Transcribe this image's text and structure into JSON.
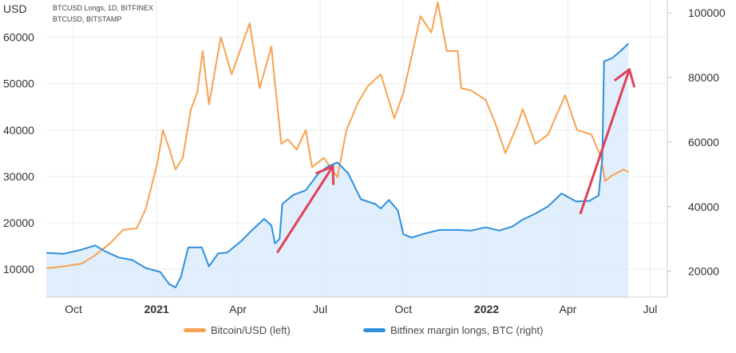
{
  "chart_data": {
    "type": "line",
    "header": {
      "unit": "USD",
      "series_lines": [
        "BTCUSD Longs, 1D, BITFINEX",
        "BTCUSD, BITSTAMP"
      ]
    },
    "left_axis": {
      "ticks": [
        "10000",
        "20000",
        "30000",
        "40000",
        "50000",
        "60000"
      ],
      "tick_values": [
        10000,
        20000,
        30000,
        40000,
        50000,
        60000
      ],
      "ylim": [
        4000,
        68000
      ]
    },
    "right_axis": {
      "ticks": [
        "20000",
        "40000",
        "60000",
        "80000",
        "100000"
      ],
      "tick_values": [
        20000,
        40000,
        60000,
        80000,
        100000
      ],
      "ylim": [
        12000,
        104000
      ]
    },
    "x_axis": {
      "ticks": [
        {
          "label": "Oct",
          "date": "2020-10-01",
          "bold": false
        },
        {
          "label": "2021",
          "date": "2021-01-01",
          "bold": true
        },
        {
          "label": "Apr",
          "date": "2021-04-01",
          "bold": false
        },
        {
          "label": "Jul",
          "date": "2021-07-01",
          "bold": false
        },
        {
          "label": "Oct",
          "date": "2021-10-01",
          "bold": false
        },
        {
          "label": "2022",
          "date": "2022-01-01",
          "bold": true
        },
        {
          "label": "Apr",
          "date": "2022-04-01",
          "bold": false
        },
        {
          "label": "Jul",
          "date": "2022-07-01",
          "bold": false
        }
      ],
      "xlim": [
        "2020-09-01",
        "2022-07-20"
      ]
    },
    "series": [
      {
        "name": "Bitcoin/USD (left)",
        "color": "#f7a250",
        "axis": "left",
        "points": [
          [
            "2020-09-01",
            10200
          ],
          [
            "2020-09-20",
            10600
          ],
          [
            "2020-10-10",
            11200
          ],
          [
            "2020-10-25",
            13000
          ],
          [
            "2020-11-10",
            15500
          ],
          [
            "2020-11-25",
            18500
          ],
          [
            "2020-12-10",
            18800
          ],
          [
            "2020-12-20",
            23000
          ],
          [
            "2021-01-02",
            33000
          ],
          [
            "2021-01-08",
            40000
          ],
          [
            "2021-01-15",
            36000
          ],
          [
            "2021-01-22",
            31500
          ],
          [
            "2021-01-30",
            34000
          ],
          [
            "2021-02-08",
            44500
          ],
          [
            "2021-02-15",
            48000
          ],
          [
            "2021-02-21",
            57000
          ],
          [
            "2021-02-28",
            45500
          ],
          [
            "2021-03-13",
            60000
          ],
          [
            "2021-03-25",
            52000
          ],
          [
            "2021-04-05",
            58000
          ],
          [
            "2021-04-14",
            63000
          ],
          [
            "2021-04-25",
            49000
          ],
          [
            "2021-05-08",
            58000
          ],
          [
            "2021-05-12",
            50000
          ],
          [
            "2021-05-19",
            37000
          ],
          [
            "2021-05-26",
            38000
          ],
          [
            "2021-06-05",
            35800
          ],
          [
            "2021-06-15",
            40000
          ],
          [
            "2021-06-22",
            32000
          ],
          [
            "2021-07-05",
            34000
          ],
          [
            "2021-07-20",
            29800
          ],
          [
            "2021-07-30",
            40000
          ],
          [
            "2021-08-12",
            46000
          ],
          [
            "2021-08-23",
            49500
          ],
          [
            "2021-09-06",
            52000
          ],
          [
            "2021-09-21",
            42500
          ],
          [
            "2021-10-01",
            48000
          ],
          [
            "2021-10-08",
            54000
          ],
          [
            "2021-10-20",
            64500
          ],
          [
            "2021-11-01",
            61000
          ],
          [
            "2021-11-08",
            67500
          ],
          [
            "2021-11-18",
            57000
          ],
          [
            "2021-11-30",
            57000
          ],
          [
            "2021-12-04",
            49000
          ],
          [
            "2021-12-15",
            48500
          ],
          [
            "2021-12-31",
            46500
          ],
          [
            "2022-01-10",
            41800
          ],
          [
            "2022-01-22",
            35000
          ],
          [
            "2022-02-05",
            41500
          ],
          [
            "2022-02-10",
            44500
          ],
          [
            "2022-02-24",
            37000
          ],
          [
            "2022-03-10",
            39000
          ],
          [
            "2022-03-29",
            47500
          ],
          [
            "2022-04-11",
            40000
          ],
          [
            "2022-04-27",
            39000
          ],
          [
            "2022-05-08",
            34000
          ],
          [
            "2022-05-12",
            29000
          ],
          [
            "2022-05-20",
            30200
          ],
          [
            "2022-06-01",
            31500
          ],
          [
            "2022-06-07",
            31000
          ]
        ]
      },
      {
        "name": "Bitfinex margin longs, BTC (right)",
        "color": "#2f8fdc",
        "fill": "#d6e9fa",
        "axis": "right",
        "points": [
          [
            "2020-09-01",
            25700
          ],
          [
            "2020-09-20",
            25400
          ],
          [
            "2020-10-10",
            26700
          ],
          [
            "2020-10-25",
            28000
          ],
          [
            "2020-11-05",
            26200
          ],
          [
            "2020-11-20",
            24300
          ],
          [
            "2020-12-05",
            23500
          ],
          [
            "2020-12-20",
            21000
          ],
          [
            "2021-01-05",
            19800
          ],
          [
            "2021-01-15",
            16000
          ],
          [
            "2021-01-22",
            15000
          ],
          [
            "2021-01-28",
            18300
          ],
          [
            "2021-02-05",
            27400
          ],
          [
            "2021-02-20",
            27400
          ],
          [
            "2021-02-28",
            21500
          ],
          [
            "2021-03-10",
            25500
          ],
          [
            "2021-03-20",
            25800
          ],
          [
            "2021-04-05",
            29400
          ],
          [
            "2021-04-15",
            32300
          ],
          [
            "2021-04-30",
            36200
          ],
          [
            "2021-05-08",
            34200
          ],
          [
            "2021-05-12",
            28600
          ],
          [
            "2021-05-17",
            30000
          ],
          [
            "2021-05-20",
            40800
          ],
          [
            "2021-06-01",
            43600
          ],
          [
            "2021-06-15",
            45100
          ],
          [
            "2021-06-30",
            50600
          ],
          [
            "2021-07-10",
            52500
          ],
          [
            "2021-07-20",
            53700
          ],
          [
            "2021-08-01",
            50300
          ],
          [
            "2021-08-15",
            42300
          ],
          [
            "2021-08-31",
            40800
          ],
          [
            "2021-09-06",
            39400
          ],
          [
            "2021-09-15",
            42100
          ],
          [
            "2021-09-25",
            38800
          ],
          [
            "2021-10-01",
            31500
          ],
          [
            "2021-10-10",
            30400
          ],
          [
            "2021-10-25",
            31700
          ],
          [
            "2021-11-10",
            32800
          ],
          [
            "2021-11-30",
            32800
          ],
          [
            "2021-12-15",
            32600
          ],
          [
            "2021-12-31",
            33600
          ],
          [
            "2022-01-15",
            32600
          ],
          [
            "2022-01-30",
            33900
          ],
          [
            "2022-02-10",
            36000
          ],
          [
            "2022-02-25",
            38000
          ],
          [
            "2022-03-10",
            40100
          ],
          [
            "2022-03-25",
            44100
          ],
          [
            "2022-04-10",
            41600
          ],
          [
            "2022-04-25",
            41800
          ],
          [
            "2022-05-05",
            43500
          ],
          [
            "2022-05-09",
            55000
          ],
          [
            "2022-05-11",
            85000
          ],
          [
            "2022-05-20",
            86000
          ],
          [
            "2022-05-30",
            88400
          ],
          [
            "2022-06-07",
            90500
          ]
        ]
      }
    ],
    "annotations": {
      "color": "#e0405a",
      "arrows": [
        {
          "from": [
            "2021-05-15",
            26000
          ],
          "to": [
            "2021-07-15",
            52500
          ],
          "axis": "right"
        },
        {
          "from": [
            "2022-04-15",
            38000
          ],
          "to": [
            "2022-06-08",
            82500
          ],
          "axis": "right"
        }
      ]
    },
    "grid": true,
    "legend_placement": "bottom"
  }
}
